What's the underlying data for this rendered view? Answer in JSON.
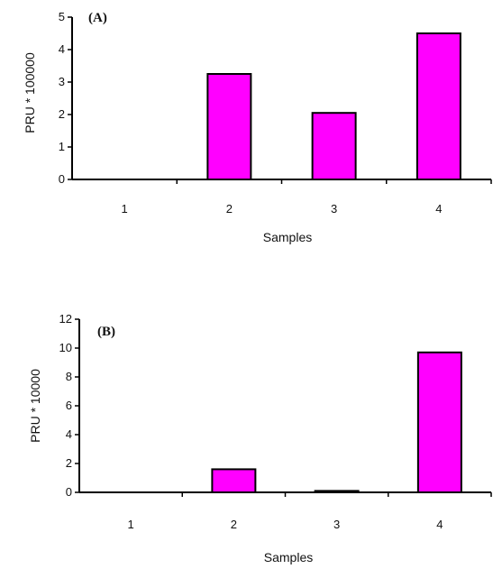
{
  "chart_data": [
    {
      "type": "bar",
      "panel_label": "(A)",
      "categories": [
        "1",
        "2",
        "3",
        "4"
      ],
      "values": [
        0,
        3.25,
        2.05,
        4.5
      ],
      "xlabel": "Samples",
      "ylabel": "PRU * 100000",
      "ylim": [
        0,
        5
      ],
      "yticks": [
        "0",
        "1",
        "2",
        "3",
        "4",
        "5"
      ],
      "bar_color": "#ff00ff",
      "grid": false,
      "legend": "none"
    },
    {
      "type": "bar",
      "panel_label": "(B)",
      "categories": [
        "1",
        "2",
        "3",
        "4"
      ],
      "values": [
        0,
        1.6,
        0.1,
        9.7
      ],
      "xlabel": "Samples",
      "ylabel": "PRU * 10000",
      "ylim": [
        0,
        12
      ],
      "yticks": [
        "0",
        "2",
        "4",
        "6",
        "8",
        "10",
        "12"
      ],
      "bar_color": "#ff00ff",
      "grid": false,
      "legend": "none"
    }
  ]
}
